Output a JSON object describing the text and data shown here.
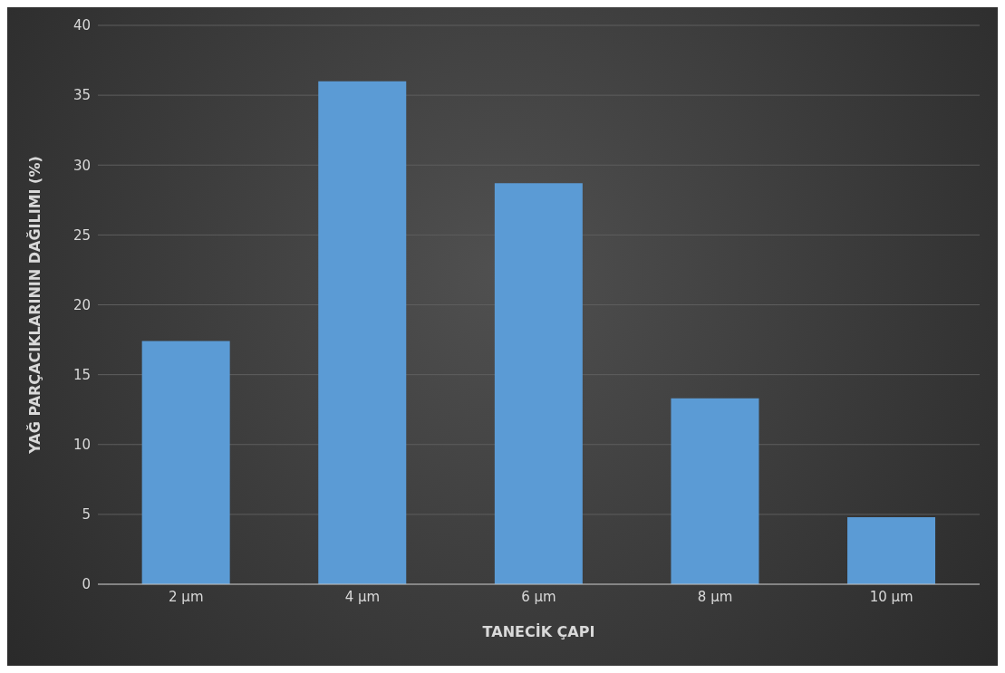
{
  "chart_data": {
    "type": "bar",
    "xlabel": "TANECİK ÇAPI",
    "ylabel": "YAĞ PARÇACIKLARININ DAĞILIMI (%)",
    "categories": [
      "2 µm",
      "4 µm",
      "6 µm",
      "8 µm",
      "10 µm"
    ],
    "values": [
      17.4,
      36.0,
      28.7,
      13.3,
      4.8
    ],
    "color": "#5b9bd5",
    "ylim": [
      0,
      40
    ],
    "yticks": [
      0,
      5,
      10,
      15,
      20,
      25,
      30,
      35,
      40
    ],
    "grid": "y"
  }
}
